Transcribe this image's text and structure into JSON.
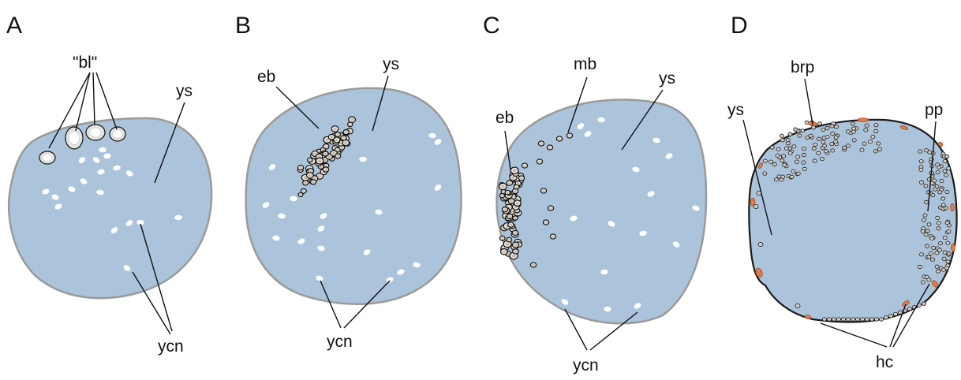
{
  "panels": [
    {
      "letter": "A",
      "labels": {
        "bl": "\"bl\"",
        "ys": "ys",
        "ycn": "ycn"
      }
    },
    {
      "letter": "B",
      "labels": {
        "eb": "eb",
        "ys": "ys",
        "ycn": "ycn"
      }
    },
    {
      "letter": "C",
      "labels": {
        "mb": "mb",
        "eb": "eb",
        "ys": "ys",
        "ycn": "ycn"
      }
    },
    {
      "letter": "D",
      "labels": {
        "brp": "brp",
        "pp": "pp",
        "ys": "ys",
        "hc": "hc"
      }
    }
  ],
  "colors": {
    "yolk": "#abc4dc",
    "nucleus": "#ffffff",
    "cell": "#e8e3dc",
    "hc": "#e07a4a"
  }
}
